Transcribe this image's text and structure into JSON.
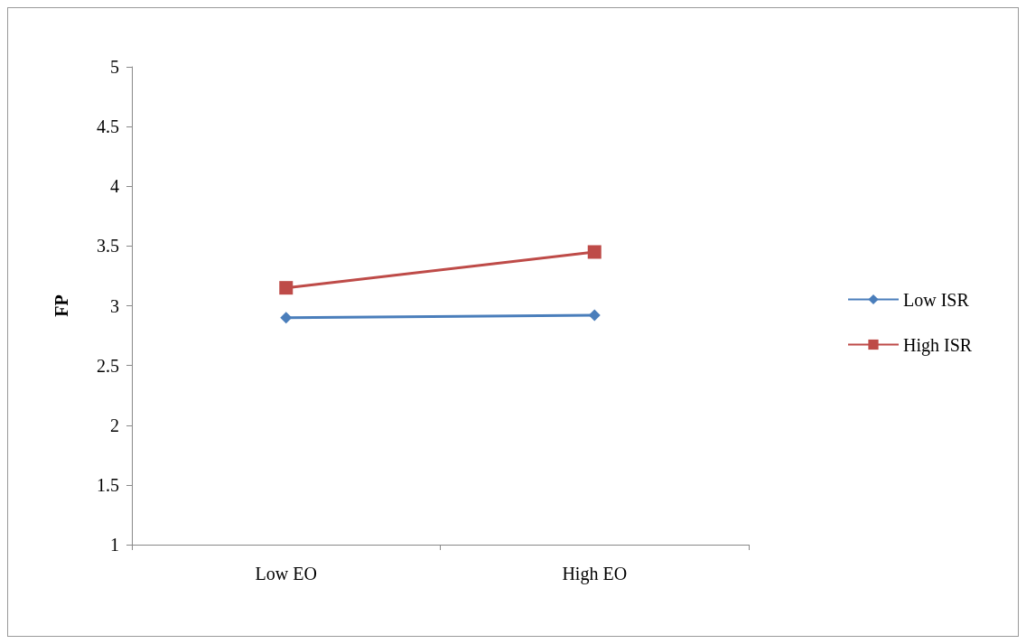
{
  "chart_data": {
    "type": "line",
    "ylabel": "FP",
    "categories": [
      "Low EO",
      "High EO"
    ],
    "series": [
      {
        "name": "Low ISR",
        "color": "#4a7ebb",
        "values": [
          2.9,
          2.92
        ],
        "marker": "diamond"
      },
      {
        "name": "High ISR",
        "color": "#be4b48",
        "values": [
          3.15,
          3.45
        ],
        "marker": "square"
      }
    ],
    "ylim": [
      1,
      5
    ],
    "yticks": [
      1,
      1.5,
      2,
      2.5,
      3,
      3.5,
      4,
      4.5,
      5
    ],
    "grid": false,
    "legend": "right"
  }
}
